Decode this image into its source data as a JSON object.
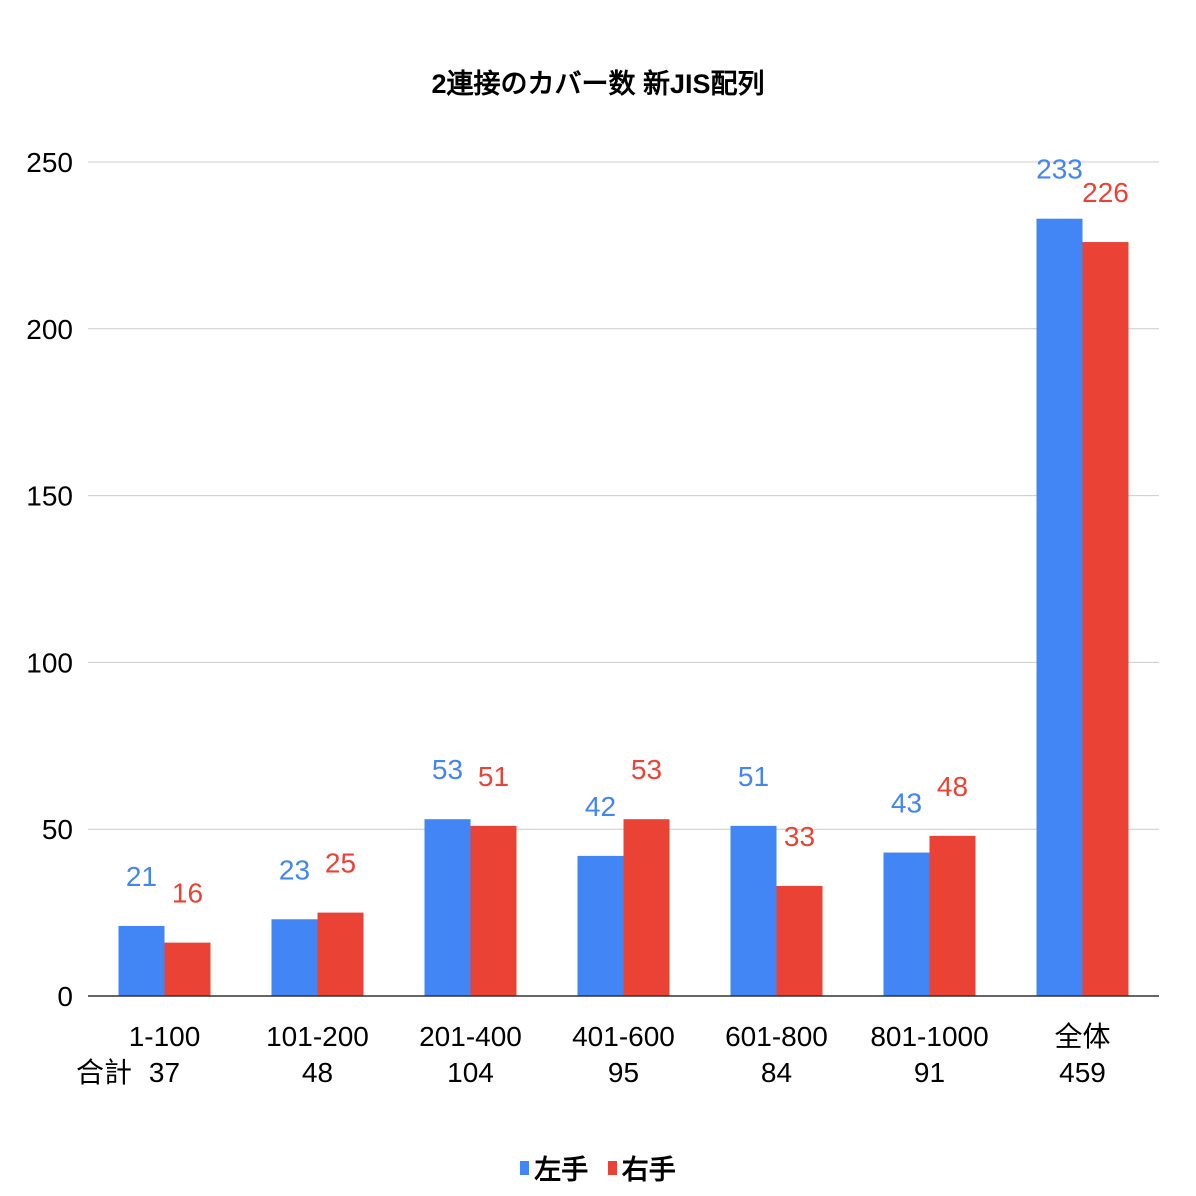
{
  "chart_data": {
    "type": "bar",
    "title": "2連接のカバー数 新JIS配列",
    "categories": [
      "1-100",
      "101-200",
      "201-400",
      "401-600",
      "601-800",
      "801-1000",
      "全体"
    ],
    "category_sublabel_title": "合計",
    "category_sublabels": [
      "37",
      "48",
      "104",
      "95",
      "84",
      "91",
      "459"
    ],
    "series": [
      {
        "name": "左手",
        "color": "#4285f4",
        "values": [
          21,
          23,
          53,
          42,
          51,
          43,
          233
        ]
      },
      {
        "name": "右手",
        "color": "#ea4335",
        "values": [
          16,
          25,
          51,
          53,
          33,
          48,
          226
        ]
      }
    ],
    "ylim": [
      0,
      250
    ],
    "yticks": [
      "0",
      "50",
      "100",
      "150",
      "200",
      "250"
    ],
    "grid": true,
    "legend_position": "bottom",
    "data_labels": true,
    "xlabel": "",
    "ylabel": ""
  }
}
